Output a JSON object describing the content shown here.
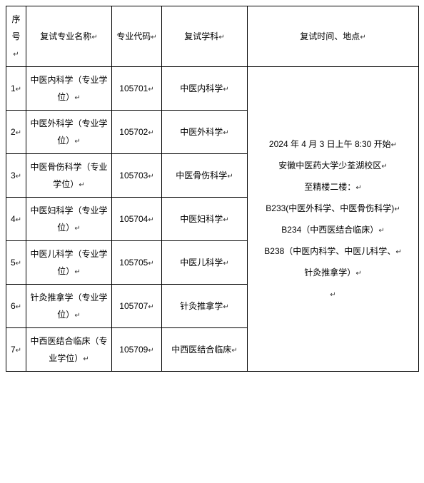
{
  "table": {
    "headers": {
      "seq": "序号",
      "major": "复试专业名称",
      "code": "专业代码",
      "subject": "复试学科",
      "timeplace": "复试时间、地点"
    },
    "rows": [
      {
        "seq": "1",
        "major": "中医内科学（专业学位）",
        "code": "105701",
        "subject": "中医内科学"
      },
      {
        "seq": "2",
        "major": "中医外科学（专业学位）",
        "code": "105702",
        "subject": "中医外科学"
      },
      {
        "seq": "3",
        "major": "中医骨伤科学（专业学位）",
        "code": "105703",
        "subject": "中医骨伤科学"
      },
      {
        "seq": "4",
        "major": "中医妇科学（专业学位）",
        "code": "105704",
        "subject": "中医妇科学"
      },
      {
        "seq": "5",
        "major": "中医儿科学（专业学位）",
        "code": "105705",
        "subject": "中医儿科学"
      },
      {
        "seq": "6",
        "major": "针灸推拿学（专业学位）",
        "code": "105707",
        "subject": "针灸推拿学"
      },
      {
        "seq": "7",
        "major": "中西医结合临床（专业学位）",
        "code": "105709",
        "subject": "中西医结合临床"
      }
    ],
    "timeplace_lines": [
      "2024 年 4 月 3 日上午 8:30 开始",
      "安徽中医药大学少荃湖校区",
      "至精楼二楼：",
      "B233(中医外科学、中医骨伤科学)",
      "B234（中西医结合临床）",
      "B238（中医内科学、中医儿科学、",
      "针灸推拿学）"
    ],
    "marker": "↵"
  },
  "style": {
    "border_color": "#000000",
    "background_color": "#ffffff",
    "font_size": 12,
    "font_family": "Microsoft YaHei",
    "cell_padding": 6,
    "line_height": 2.0,
    "col_widths": {
      "seq": 28,
      "major": 120,
      "code": 70,
      "subject": 120,
      "time": 240
    }
  }
}
